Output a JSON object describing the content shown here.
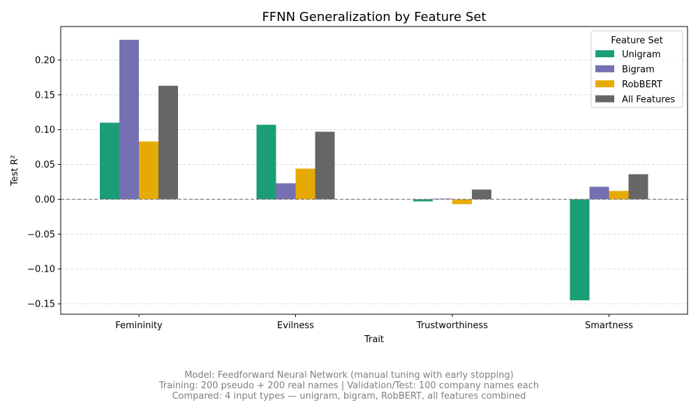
{
  "chart_data": {
    "type": "bar",
    "title": "FFNN Generalization by Feature Set",
    "xlabel": "Trait",
    "ylabel": "Test R²",
    "categories": [
      "Femininity",
      "Evilness",
      "Trustworthiness",
      "Smartness"
    ],
    "series": [
      {
        "name": "Unigram",
        "color": "#1b9e77",
        "values": [
          0.11,
          0.107,
          -0.003,
          -0.145
        ]
      },
      {
        "name": "Bigram",
        "color": "#7570b3",
        "values": [
          0.229,
          0.023,
          0.001,
          0.018
        ]
      },
      {
        "name": "RobBERT",
        "color": "#e6ab02",
        "values": [
          0.083,
          0.044,
          -0.007,
          0.012
        ]
      },
      {
        "name": "All Features",
        "color": "#666666",
        "values": [
          0.163,
          0.097,
          0.014,
          0.036
        ]
      }
    ],
    "ylim": [
      -0.165,
      0.248
    ],
    "yticks": [
      -0.15,
      -0.1,
      -0.05,
      0.0,
      0.05,
      0.1,
      0.15,
      0.2
    ],
    "ytick_labels": [
      "−0.15",
      "−0.10",
      "−0.05",
      "0.00",
      "0.05",
      "0.10",
      "0.15",
      "0.20"
    ],
    "grid": true,
    "zero_line": true,
    "legend": {
      "title": "Feature Set",
      "placement": "top-right"
    }
  },
  "caption": [
    "Model: Feedforward Neural Network (manual tuning with early stopping)",
    "Training: 200 pseudo + 200 real names | Validation/Test: 100 company names each",
    "Compared: 4 input types — unigram, bigram, RobBERT, all features combined"
  ]
}
